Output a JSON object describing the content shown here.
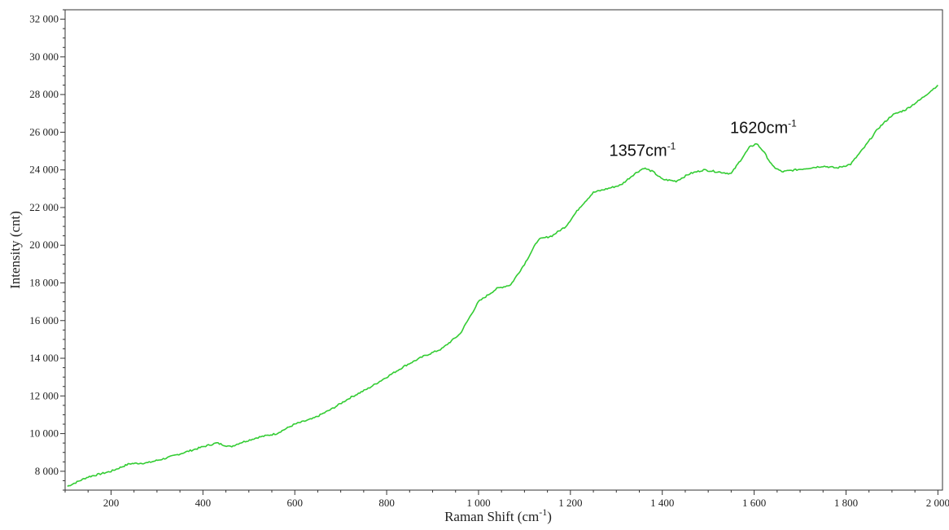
{
  "chart_data": {
    "type": "line",
    "title": "",
    "xlabel": "Raman Shift (cm",
    "xlabel_sup": "-1",
    "xlabel_end": ")",
    "ylabel": "Intensity (cnt)",
    "xlim": [
      100,
      2010
    ],
    "ylim": [
      7000,
      32500
    ],
    "x_ticks": [
      200,
      400,
      600,
      800,
      1000,
      1200,
      1400,
      1600,
      1800,
      2000
    ],
    "x_tick_labels": [
      "200",
      "400",
      "600",
      "800",
      "1 000",
      "1 200",
      "1 400",
      "1 600",
      "1 800",
      "2 000"
    ],
    "y_ticks": [
      8000,
      10000,
      12000,
      14000,
      16000,
      18000,
      20000,
      22000,
      24000,
      26000,
      28000,
      30000,
      32000
    ],
    "y_tick_labels": [
      "8 000",
      "10 000",
      "12 000",
      "14 000",
      "16 000",
      "18 000",
      "20 000",
      "22 000",
      "24 000",
      "26 000",
      "28 000",
      "30 000",
      "32 000"
    ],
    "grid": false,
    "series": [
      {
        "color": "#33cc33",
        "x": [
          105,
          150,
          200,
          220,
          240,
          280,
          320,
          360,
          400,
          430,
          460,
          480,
          520,
          560,
          600,
          640,
          680,
          720,
          760,
          800,
          840,
          880,
          920,
          960,
          1000,
          1040,
          1070,
          1100,
          1130,
          1160,
          1190,
          1220,
          1250,
          1280,
          1310,
          1340,
          1360,
          1380,
          1400,
          1430,
          1460,
          1490,
          1520,
          1550,
          1570,
          1590,
          1605,
          1620,
          1640,
          1660,
          1690,
          1720,
          1750,
          1780,
          1810,
          1840,
          1870,
          1900,
          1930,
          1960,
          2000
        ],
        "y": [
          7200,
          7700,
          8000,
          8200,
          8400,
          8450,
          8700,
          9000,
          9300,
          9500,
          9300,
          9500,
          9800,
          10000,
          10500,
          10800,
          11300,
          11900,
          12400,
          13000,
          13600,
          14100,
          14500,
          15300,
          17000,
          17700,
          17900,
          19000,
          20300,
          20500,
          21000,
          22000,
          22800,
          23000,
          23200,
          23800,
          24100,
          23900,
          23500,
          23400,
          23800,
          24000,
          23900,
          23800,
          24500,
          25200,
          25400,
          25000,
          24200,
          23900,
          24000,
          24100,
          24200,
          24100,
          24300,
          25200,
          26200,
          26900,
          27200,
          27700,
          28500
        ]
      }
    ],
    "annotations": [
      {
        "text": "1357cm",
        "sup": "-1",
        "x": 1357,
        "y": 24400
      },
      {
        "text": "1620cm",
        "sup": "-1",
        "x": 1620,
        "y": 25600
      }
    ]
  }
}
